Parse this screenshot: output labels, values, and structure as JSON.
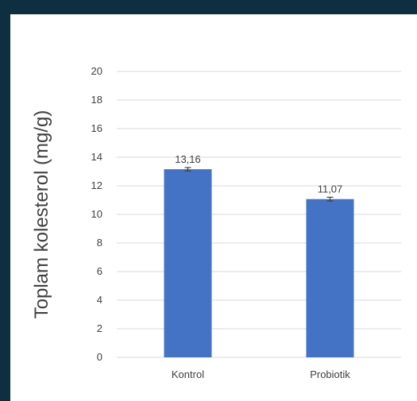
{
  "chart_data": {
    "type": "bar",
    "categories": [
      "Kontrol",
      "Probiotik"
    ],
    "values": [
      13.16,
      11.07
    ],
    "data_labels": [
      "13,16",
      "11,07"
    ],
    "error": [
      0.12,
      0.13
    ],
    "title": "",
    "xlabel": "",
    "ylabel": "Toplam kolesterol (mg/g)",
    "ylim": [
      0,
      20
    ],
    "ytick_step": 2,
    "yticks": [
      "0",
      "2",
      "4",
      "6",
      "8",
      "10",
      "12",
      "14",
      "16",
      "18",
      "20"
    ],
    "grid": true,
    "legend": "none",
    "colors": {
      "bar": "#4472c4",
      "grid": "#d9d9d9",
      "text": "#404040",
      "error_bar": "#404040",
      "frame_border": "#0e2f3f"
    }
  }
}
